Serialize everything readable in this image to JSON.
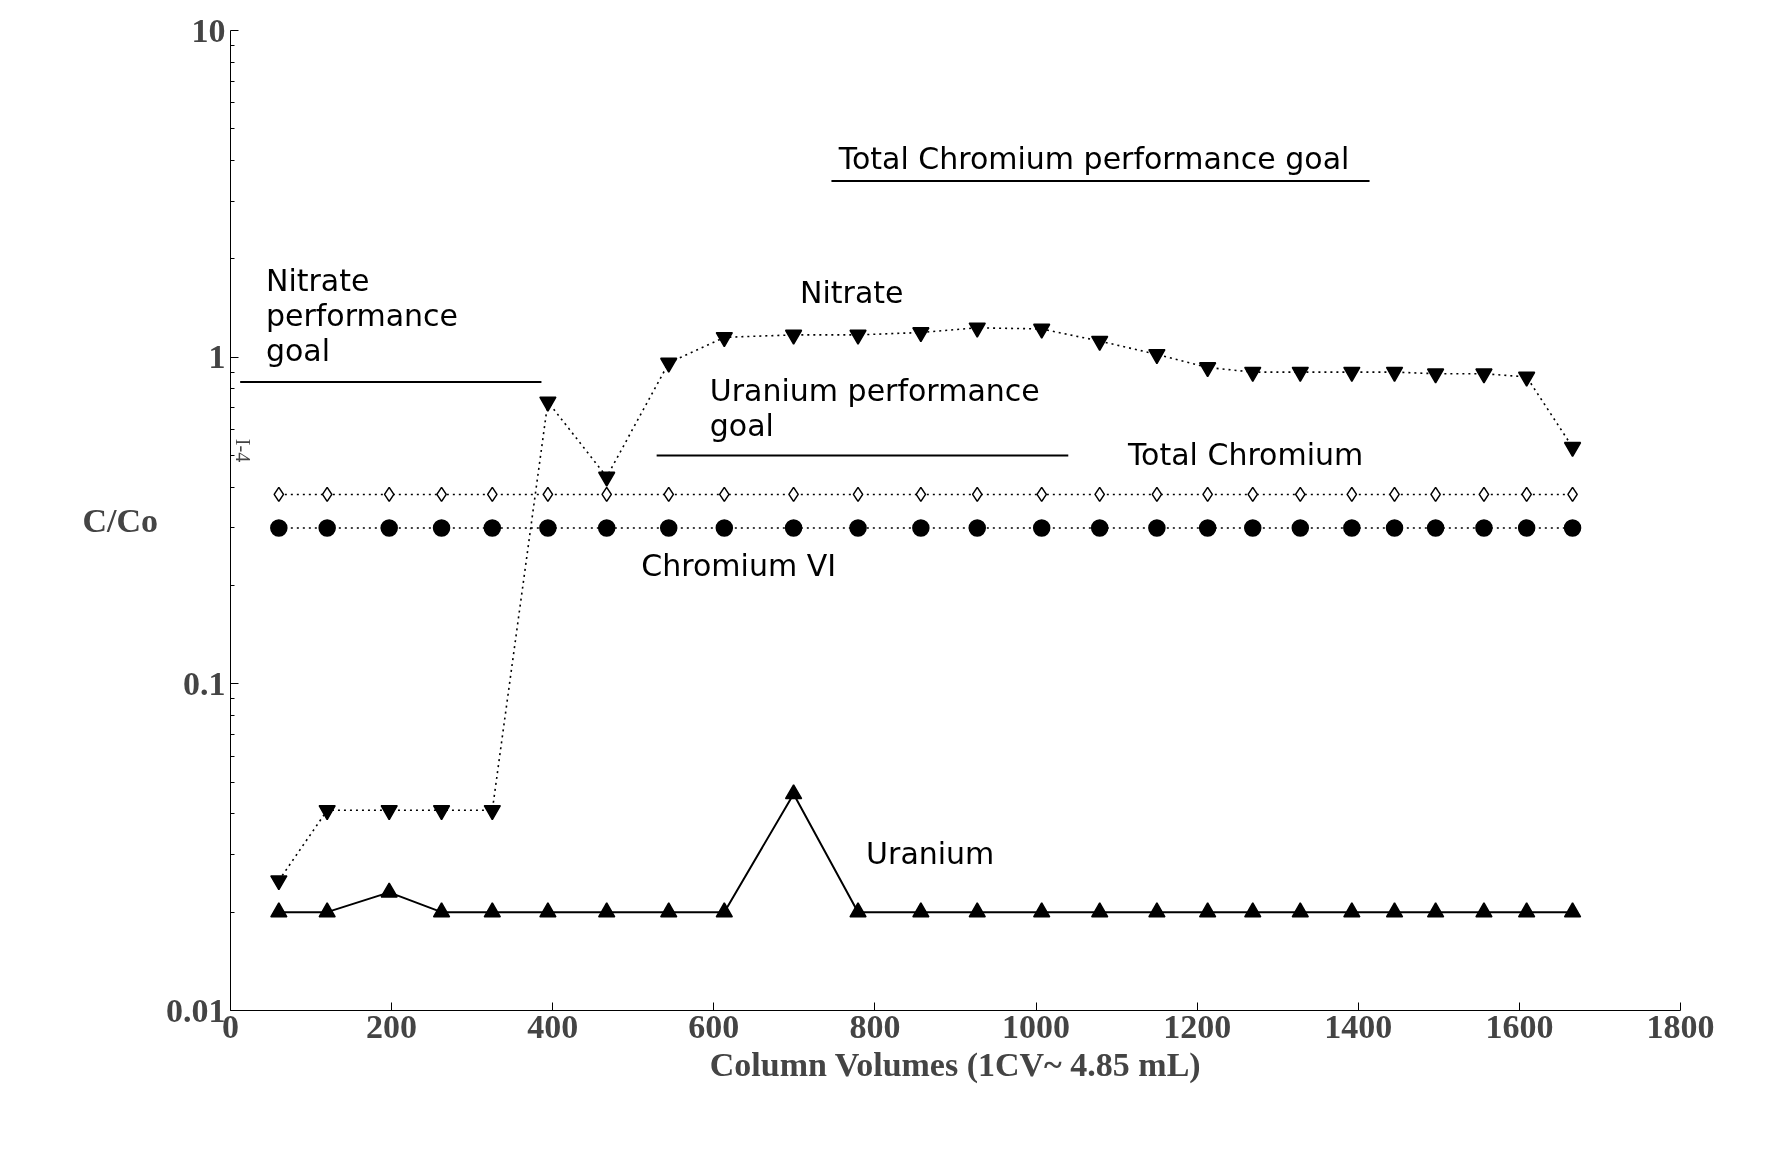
{
  "chart_data": {
    "type": "line",
    "xlabel": "Column Volumes (1CV~ 4.85 mL)",
    "ylabel": "C/Co",
    "log": "y",
    "grid": false,
    "xlim": [
      0,
      1800
    ],
    "xticks": [
      0,
      200,
      400,
      600,
      800,
      1000,
      1200,
      1400,
      1600,
      1800
    ],
    "ylim": [
      0.01,
      10
    ],
    "yticks": [
      0.01,
      0.1,
      1,
      10
    ],
    "x": [
      60,
      120,
      197,
      262,
      325,
      394,
      467,
      544,
      613,
      699,
      779,
      857,
      927,
      1007,
      1079,
      1150,
      1213,
      1269,
      1328,
      1392,
      1445,
      1496,
      1556,
      1609,
      1666
    ],
    "series": [
      {
        "name": "Nitrate",
        "color": "#000000",
        "marker": "triangle_down",
        "line_style": "dotted",
        "values": [
          0.025,
          0.041,
          0.041,
          0.041,
          0.041,
          0.73,
          0.43,
          0.96,
          1.15,
          1.17,
          1.17,
          1.19,
          1.23,
          1.22,
          1.12,
          1.02,
          0.93,
          0.9,
          0.9,
          0.9,
          0.9,
          0.89,
          0.89,
          0.87,
          0.53
        ]
      },
      {
        "name": "Total Chromium",
        "color": "#000000",
        "marker": "diamond",
        "line_style": "dotted",
        "values": [
          0.38,
          0.38,
          0.38,
          0.38,
          0.38,
          0.38,
          0.38,
          0.38,
          0.38,
          0.38,
          0.38,
          0.38,
          0.38,
          0.38,
          0.38,
          0.38,
          0.38,
          0.38,
          0.38,
          0.38,
          0.38,
          0.38,
          0.38,
          0.38,
          0.38
        ]
      },
      {
        "name": "Chromium VI",
        "color": "#000000",
        "marker": "circle",
        "line_style": "dotted",
        "values": [
          0.3,
          0.3,
          0.3,
          0.3,
          0.3,
          0.3,
          0.3,
          0.3,
          0.3,
          0.3,
          0.3,
          0.3,
          0.3,
          0.3,
          0.3,
          0.3,
          0.3,
          0.3,
          0.3,
          0.3,
          0.3,
          0.3,
          0.3,
          0.3,
          0.3
        ]
      },
      {
        "name": "Uranium",
        "color": "#000000",
        "marker": "triangle",
        "line_style": "solid",
        "values": [
          0.02,
          0.02,
          0.023,
          0.02,
          0.02,
          0.02,
          0.02,
          0.02,
          0.02,
          0.046,
          0.02,
          0.02,
          0.02,
          0.02,
          0.02,
          0.02,
          0.02,
          0.02,
          0.02,
          0.02,
          0.02,
          0.02,
          0.02,
          0.02,
          0.02
        ]
      },
      {
        "name": "Nitrate\nperformance\ngoal",
        "color": "#000000",
        "marker": "none",
        "line_style": "solid",
        "x": [
          12,
          386
        ],
        "values": [
          0.84,
          0.84
        ]
      },
      {
        "name": "Uranium performance\ngoal",
        "color": "#000000",
        "marker": "none",
        "line_style": "solid",
        "x": [
          529,
          1040
        ],
        "values": [
          0.5,
          0.5
        ]
      },
      {
        "name": "Total Chromium performance goal",
        "color": "#000000",
        "marker": "none",
        "line_style": "solid",
        "x": [
          746,
          1414
        ],
        "values": [
          3.46,
          3.46
        ]
      }
    ],
    "annotations": [
      "I-4"
    ]
  }
}
